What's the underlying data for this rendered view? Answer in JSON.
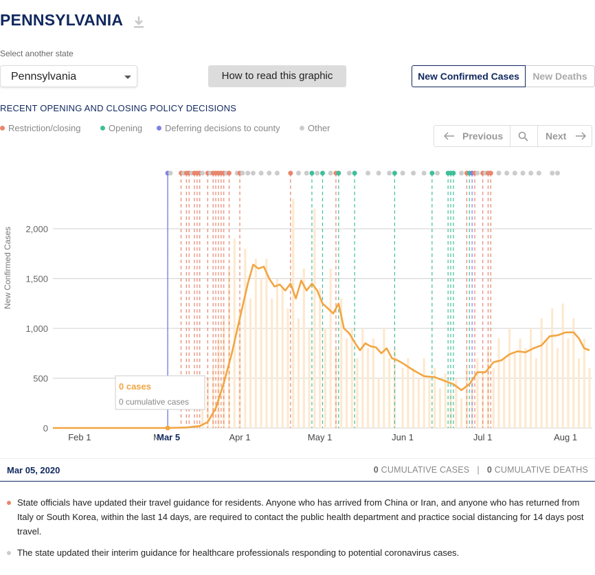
{
  "header": {
    "title": "PENNSYLVANIA",
    "select_label": "Select another state",
    "selected_state": "Pennsylvania",
    "how_to_read": "How to read this graphic"
  },
  "toggle": {
    "cases": "New Confirmed Cases",
    "deaths": "New Deaths",
    "active": "cases"
  },
  "policy": {
    "heading": "RECENT OPENING AND CLOSING POLICY DECISIONS",
    "legend": [
      {
        "label": "Restriction/closing",
        "color": "#e8866e"
      },
      {
        "label": "Opening",
        "color": "#3fbf9a"
      },
      {
        "label": "Deferring decisions to county",
        "color": "#7c83e6"
      },
      {
        "label": "Other",
        "color": "#cccccc"
      }
    ]
  },
  "pager": {
    "prev": "Previous",
    "next": "Next",
    "prev_icon": "arrow-left-icon",
    "search_icon": "magnifier-icon",
    "next_icon": "arrow-right-icon"
  },
  "tooltip": {
    "value": "0 cases",
    "cumulative": "0 cumulative cases"
  },
  "selection": {
    "date": "Mar 05, 2020",
    "cum_cases_n": "0",
    "cum_cases_label": "CUMULATIVE CASES",
    "separator": "|",
    "cum_deaths_n": "0",
    "cum_deaths_label": "CUMULATIVE DEATHS"
  },
  "notes": [
    {
      "color": "#e8866e",
      "text": "State officials have updated their travel guidance for residents. Anyone who has arrived from China or Iran, and anyone who has returned from Italy or South Korea, within the last 14 days, are required to contact the public health department and practice social distancing for 14 days post travel."
    },
    {
      "color": "#cccccc",
      "text": "The state updated their interim guidance for healthcare professionals responding to potential coronavirus cases."
    }
  ],
  "colors": {
    "line": "#f2a541",
    "bars": "#fde9cf",
    "grid": "#d9d9d9",
    "restriction": "#e8866e",
    "opening": "#3fbf9a",
    "deferring": "#7c83e6",
    "other": "#cccccc"
  },
  "chart_data": {
    "type": "line",
    "ylabel": "New Confirmed Cases",
    "ylim": [
      0,
      2000
    ],
    "yticks": [
      0,
      500,
      1000,
      1500,
      2000
    ],
    "ytick_labels": [
      "0",
      "500",
      "1,000",
      "1,500",
      "2,000"
    ],
    "xticks": [
      {
        "date": "2020-02-01",
        "label": "Feb 1"
      },
      {
        "date": "2020-03-01",
        "label": "M"
      },
      {
        "date": "2020-04-01",
        "label": "Apr 1"
      },
      {
        "date": "2020-05-01",
        "label": "May 1"
      },
      {
        "date": "2020-06-01",
        "label": "Jun 1"
      },
      {
        "date": "2020-07-01",
        "label": "Jul 1"
      },
      {
        "date": "2020-08-01",
        "label": "Aug 1"
      }
    ],
    "x_start": "2020-01-22",
    "x_end": "2020-08-11",
    "highlight": {
      "date": "2020-03-05",
      "label": "Mar 5"
    },
    "series": [
      {
        "kind": "7-day average",
        "points": [
          [
            "2020-01-22",
            0
          ],
          [
            "2020-03-05",
            0
          ],
          [
            "2020-03-12",
            5
          ],
          [
            "2020-03-17",
            20
          ],
          [
            "2020-03-20",
            60
          ],
          [
            "2020-03-23",
            200
          ],
          [
            "2020-03-26",
            450
          ],
          [
            "2020-03-29",
            750
          ],
          [
            "2020-04-01",
            1100
          ],
          [
            "2020-04-04",
            1450
          ],
          [
            "2020-04-06",
            1640
          ],
          [
            "2020-04-08",
            1600
          ],
          [
            "2020-04-10",
            1620
          ],
          [
            "2020-04-12",
            1500
          ],
          [
            "2020-04-14",
            1420
          ],
          [
            "2020-04-16",
            1440
          ],
          [
            "2020-04-18",
            1380
          ],
          [
            "2020-04-20",
            1450
          ],
          [
            "2020-04-22",
            1300
          ],
          [
            "2020-04-24",
            1480
          ],
          [
            "2020-04-26",
            1380
          ],
          [
            "2020-04-28",
            1450
          ],
          [
            "2020-04-30",
            1380
          ],
          [
            "2020-05-02",
            1250
          ],
          [
            "2020-05-04",
            1200
          ],
          [
            "2020-05-06",
            1150
          ],
          [
            "2020-05-08",
            1250
          ],
          [
            "2020-05-10",
            1000
          ],
          [
            "2020-05-12",
            950
          ],
          [
            "2020-05-14",
            860
          ],
          [
            "2020-05-16",
            780
          ],
          [
            "2020-05-18",
            850
          ],
          [
            "2020-05-20",
            820
          ],
          [
            "2020-05-22",
            810
          ],
          [
            "2020-05-24",
            750
          ],
          [
            "2020-05-26",
            800
          ],
          [
            "2020-05-28",
            700
          ],
          [
            "2020-05-30",
            680
          ],
          [
            "2020-06-01",
            650
          ],
          [
            "2020-06-05",
            580
          ],
          [
            "2020-06-09",
            520
          ],
          [
            "2020-06-13",
            510
          ],
          [
            "2020-06-17",
            470
          ],
          [
            "2020-06-20",
            440
          ],
          [
            "2020-06-23",
            380
          ],
          [
            "2020-06-26",
            440
          ],
          [
            "2020-06-29",
            560
          ],
          [
            "2020-07-02",
            560
          ],
          [
            "2020-07-05",
            660
          ],
          [
            "2020-07-08",
            680
          ],
          [
            "2020-07-11",
            740
          ],
          [
            "2020-07-14",
            770
          ],
          [
            "2020-07-17",
            760
          ],
          [
            "2020-07-20",
            800
          ],
          [
            "2020-07-23",
            830
          ],
          [
            "2020-07-26",
            920
          ],
          [
            "2020-07-29",
            930
          ],
          [
            "2020-08-01",
            960
          ],
          [
            "2020-08-04",
            960
          ],
          [
            "2020-08-06",
            900
          ],
          [
            "2020-08-08",
            800
          ],
          [
            "2020-08-10",
            780
          ]
        ]
      },
      {
        "kind": "daily new cases",
        "points": [
          [
            "2020-03-18",
            300
          ],
          [
            "2020-03-20",
            500
          ],
          [
            "2020-03-22",
            600
          ],
          [
            "2020-03-24",
            900
          ],
          [
            "2020-03-26",
            1100
          ],
          [
            "2020-03-28",
            1600
          ],
          [
            "2020-03-30",
            1900
          ],
          [
            "2020-04-01",
            1200
          ],
          [
            "2020-04-03",
            1800
          ],
          [
            "2020-04-05",
            1300
          ],
          [
            "2020-04-07",
            1700
          ],
          [
            "2020-04-09",
            1500
          ],
          [
            "2020-04-11",
            1700
          ],
          [
            "2020-04-13",
            1300
          ],
          [
            "2020-04-15",
            1500
          ],
          [
            "2020-04-17",
            1400
          ],
          [
            "2020-04-19",
            1200
          ],
          [
            "2020-04-21",
            2300
          ],
          [
            "2020-04-23",
            1100
          ],
          [
            "2020-04-25",
            1600
          ],
          [
            "2020-04-27",
            1000
          ],
          [
            "2020-04-29",
            2200
          ],
          [
            "2020-05-01",
            1400
          ],
          [
            "2020-05-03",
            1000
          ],
          [
            "2020-05-05",
            1600
          ],
          [
            "2020-05-07",
            800
          ],
          [
            "2020-05-09",
            1300
          ],
          [
            "2020-05-11",
            900
          ],
          [
            "2020-05-13",
            1000
          ],
          [
            "2020-05-15",
            700
          ],
          [
            "2020-05-17",
            1000
          ],
          [
            "2020-05-19",
            800
          ],
          [
            "2020-05-21",
            900
          ],
          [
            "2020-05-23",
            500
          ],
          [
            "2020-05-25",
            1000
          ],
          [
            "2020-05-27",
            700
          ],
          [
            "2020-05-29",
            800
          ],
          [
            "2020-06-01",
            600
          ],
          [
            "2020-06-03",
            700
          ],
          [
            "2020-06-05",
            600
          ],
          [
            "2020-06-07",
            500
          ],
          [
            "2020-06-09",
            700
          ],
          [
            "2020-06-11",
            500
          ],
          [
            "2020-06-13",
            600
          ],
          [
            "2020-06-15",
            400
          ],
          [
            "2020-06-17",
            550
          ],
          [
            "2020-06-19",
            350
          ],
          [
            "2020-06-21",
            500
          ],
          [
            "2020-06-23",
            300
          ],
          [
            "2020-06-25",
            600
          ],
          [
            "2020-06-27",
            500
          ],
          [
            "2020-06-29",
            700
          ],
          [
            "2020-07-01",
            550
          ],
          [
            "2020-07-03",
            800
          ],
          [
            "2020-07-05",
            600
          ],
          [
            "2020-07-07",
            900
          ],
          [
            "2020-07-09",
            700
          ],
          [
            "2020-07-11",
            1000
          ],
          [
            "2020-07-13",
            750
          ],
          [
            "2020-07-15",
            900
          ],
          [
            "2020-07-17",
            800
          ],
          [
            "2020-07-19",
            1000
          ],
          [
            "2020-07-21",
            700
          ],
          [
            "2020-07-23",
            1100
          ],
          [
            "2020-07-25",
            900
          ],
          [
            "2020-07-27",
            1200
          ],
          [
            "2020-07-29",
            800
          ],
          [
            "2020-07-31",
            1250
          ],
          [
            "2020-08-02",
            900
          ],
          [
            "2020-08-04",
            1100
          ],
          [
            "2020-08-06",
            700
          ],
          [
            "2020-08-08",
            900
          ],
          [
            "2020-08-10",
            600
          ]
        ]
      }
    ],
    "policy_events": [
      {
        "date": "2020-03-05",
        "type": "deferring"
      },
      {
        "date": "2020-03-06",
        "type": "other"
      },
      {
        "date": "2020-03-10",
        "type": "restriction"
      },
      {
        "date": "2020-03-11",
        "type": "other"
      },
      {
        "date": "2020-03-12",
        "type": "restriction"
      },
      {
        "date": "2020-03-13",
        "type": "restriction"
      },
      {
        "date": "2020-03-14",
        "type": "other"
      },
      {
        "date": "2020-03-15",
        "type": "restriction"
      },
      {
        "date": "2020-03-16",
        "type": "restriction"
      },
      {
        "date": "2020-03-17",
        "type": "restriction"
      },
      {
        "date": "2020-03-18",
        "type": "other"
      },
      {
        "date": "2020-03-20",
        "type": "restriction"
      },
      {
        "date": "2020-03-21",
        "type": "other"
      },
      {
        "date": "2020-03-22",
        "type": "restriction"
      },
      {
        "date": "2020-03-23",
        "type": "restriction"
      },
      {
        "date": "2020-03-24",
        "type": "restriction"
      },
      {
        "date": "2020-03-25",
        "type": "restriction"
      },
      {
        "date": "2020-03-26",
        "type": "restriction"
      },
      {
        "date": "2020-03-27",
        "type": "other"
      },
      {
        "date": "2020-03-28",
        "type": "restriction"
      },
      {
        "date": "2020-03-31",
        "type": "other"
      },
      {
        "date": "2020-04-01",
        "type": "restriction"
      },
      {
        "date": "2020-04-02",
        "type": "other"
      },
      {
        "date": "2020-04-04",
        "type": "other"
      },
      {
        "date": "2020-04-06",
        "type": "other"
      },
      {
        "date": "2020-04-09",
        "type": "other"
      },
      {
        "date": "2020-04-12",
        "type": "other"
      },
      {
        "date": "2020-04-15",
        "type": "other"
      },
      {
        "date": "2020-04-20",
        "type": "restriction"
      },
      {
        "date": "2020-04-23",
        "type": "other"
      },
      {
        "date": "2020-04-26",
        "type": "other"
      },
      {
        "date": "2020-04-28",
        "type": "opening"
      },
      {
        "date": "2020-04-30",
        "type": "other"
      },
      {
        "date": "2020-05-02",
        "type": "opening"
      },
      {
        "date": "2020-05-05",
        "type": "other"
      },
      {
        "date": "2020-05-07",
        "type": "restriction"
      },
      {
        "date": "2020-05-08",
        "type": "opening"
      },
      {
        "date": "2020-05-12",
        "type": "other"
      },
      {
        "date": "2020-05-14",
        "type": "opening"
      },
      {
        "date": "2020-05-19",
        "type": "other"
      },
      {
        "date": "2020-05-23",
        "type": "other"
      },
      {
        "date": "2020-05-27",
        "type": "other"
      },
      {
        "date": "2020-05-29",
        "type": "opening"
      },
      {
        "date": "2020-06-01",
        "type": "other"
      },
      {
        "date": "2020-06-05",
        "type": "other"
      },
      {
        "date": "2020-06-09",
        "type": "other"
      },
      {
        "date": "2020-06-12",
        "type": "opening"
      },
      {
        "date": "2020-06-14",
        "type": "other"
      },
      {
        "date": "2020-06-18",
        "type": "opening"
      },
      {
        "date": "2020-06-19",
        "type": "opening"
      },
      {
        "date": "2020-06-20",
        "type": "opening"
      },
      {
        "date": "2020-06-23",
        "type": "other"
      },
      {
        "date": "2020-06-25",
        "type": "restriction"
      },
      {
        "date": "2020-06-26",
        "type": "opening"
      },
      {
        "date": "2020-06-27",
        "type": "deferring"
      },
      {
        "date": "2020-06-28",
        "type": "restriction"
      },
      {
        "date": "2020-06-29",
        "type": "other"
      },
      {
        "date": "2020-07-01",
        "type": "restriction"
      },
      {
        "date": "2020-07-02",
        "type": "other"
      },
      {
        "date": "2020-07-03",
        "type": "restriction"
      },
      {
        "date": "2020-07-04",
        "type": "restriction"
      },
      {
        "date": "2020-07-07",
        "type": "other"
      },
      {
        "date": "2020-07-10",
        "type": "other"
      },
      {
        "date": "2020-07-13",
        "type": "other"
      },
      {
        "date": "2020-07-16",
        "type": "other"
      },
      {
        "date": "2020-07-19",
        "type": "other"
      },
      {
        "date": "2020-07-22",
        "type": "other"
      },
      {
        "date": "2020-07-27",
        "type": "other"
      },
      {
        "date": "2020-07-29",
        "type": "other"
      }
    ]
  }
}
